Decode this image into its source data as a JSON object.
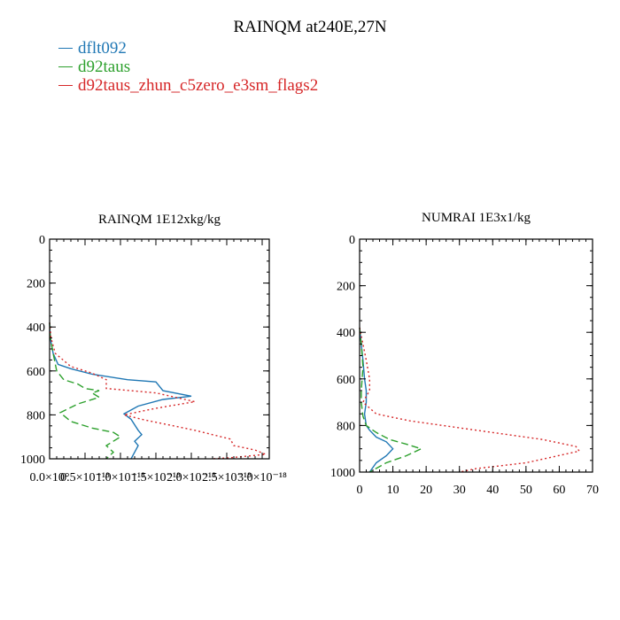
{
  "title": "RAINQM at240E,27N",
  "legend": [
    {
      "name": "dflt092",
      "color": "#1f77b4",
      "dash": "none"
    },
    {
      "name": "d92taus",
      "color": "#2ca02c",
      "dash": "8,4"
    },
    {
      "name": "d92taus_zhun_c5zero_e3sm_flags2",
      "color": "#d62728",
      "dash": "2,3"
    }
  ],
  "chart_data": [
    {
      "type": "line",
      "title": "RAINQM  1E12xkg/kg",
      "xlim": [
        0,
        3.1e-18
      ],
      "ylim": [
        1000,
        0
      ],
      "x_ticks": [
        0,
        5e-19,
        1e-18,
        1.5e-18,
        2e-18,
        2.5e-18,
        3e-18
      ],
      "x_tick_labels": [
        "0.0×10°",
        "0.5×10⁻¹⁸",
        "1.0×10⁻¹⁸",
        "1.5×10⁻¹⁸",
        "2.0×10⁻¹⁸",
        "2.5×10⁻¹⁸",
        "3.0×10⁻¹⁸"
      ],
      "y_ticks": [
        0,
        200,
        400,
        600,
        800,
        1000
      ],
      "y_tick_labels": [
        "0",
        "200",
        "400",
        "600",
        "800",
        "1000"
      ],
      "series": [
        {
          "name": "dflt092",
          "x": [
            0,
            1e-20,
            5e-20,
            1.2e-19,
            3e-19,
            6e-19,
            1.1e-18,
            1.5e-18,
            1.6e-18,
            2e-18,
            1.6e-18,
            1.25e-18,
            1.05e-18,
            1.15e-18,
            1.25e-18,
            1.3e-18,
            1.2e-18,
            1.25e-18,
            1.2e-18,
            1.15e-18
          ],
          "y": [
            380,
            450,
            520,
            570,
            590,
            615,
            640,
            650,
            690,
            715,
            730,
            760,
            795,
            820,
            870,
            890,
            920,
            940,
            970,
            1000
          ]
        },
        {
          "name": "d92taus",
          "x": [
            0,
            1e-20,
            5e-20,
            1e-19,
            2e-19,
            4e-19,
            5e-19,
            7e-19,
            6e-19,
            7e-19,
            4e-19,
            1.5e-19,
            3e-19,
            6e-19,
            9e-19,
            1e-18,
            8e-19,
            9e-19,
            8e-19
          ],
          "y": [
            380,
            450,
            520,
            600,
            640,
            660,
            680,
            690,
            700,
            720,
            750,
            790,
            830,
            860,
            880,
            900,
            940,
            970,
            1000
          ]
        },
        {
          "name": "d92taus_zhun_c5zero_e3sm_flags2",
          "x": [
            0,
            2e-20,
            8e-20,
            3e-19,
            6e-19,
            8e-19,
            8e-19,
            1.5e-18,
            2.05e-18,
            1.5e-18,
            1.05e-18,
            1.3e-18,
            2.05e-18,
            2.55e-18,
            2.6e-18,
            2.9e-18,
            3.05e-18,
            2.55e-18,
            2.3e-18
          ],
          "y": [
            380,
            450,
            520,
            580,
            610,
            640,
            680,
            700,
            740,
            770,
            800,
            820,
            870,
            910,
            940,
            960,
            980,
            995,
            1000
          ]
        }
      ]
    },
    {
      "type": "line",
      "title": "NUMRAI  1E3x1/kg",
      "xlim": [
        0,
        70
      ],
      "ylim": [
        1000,
        0
      ],
      "x_ticks": [
        0,
        10,
        20,
        30,
        40,
        50,
        60,
        70
      ],
      "x_tick_labels": [
        "0",
        "10",
        "20",
        "30",
        "40",
        "50",
        "60",
        "70"
      ],
      "y_ticks": [
        0,
        200,
        400,
        600,
        800,
        1000
      ],
      "y_tick_labels": [
        "0",
        "200",
        "400",
        "600",
        "800",
        "1000"
      ],
      "series": [
        {
          "name": "dflt092",
          "x": [
            0,
            0.5,
            1,
            1.5,
            2,
            2,
            1.5,
            2,
            3,
            5,
            8,
            10,
            8,
            5,
            3
          ],
          "y": [
            380,
            450,
            520,
            600,
            650,
            700,
            750,
            800,
            820,
            850,
            870,
            900,
            930,
            960,
            1000
          ]
        },
        {
          "name": "d92taus",
          "x": [
            0,
            0.5,
            1,
            0.5,
            0.5,
            1,
            2,
            5,
            9,
            14,
            18.5,
            14,
            8,
            3
          ],
          "y": [
            380,
            450,
            550,
            650,
            700,
            760,
            800,
            830,
            860,
            880,
            900,
            930,
            960,
            1000
          ]
        },
        {
          "name": "d92taus_zhun_c5zero_e3sm_flags2",
          "x": [
            0,
            1,
            2,
            3,
            3,
            1,
            5,
            15,
            35,
            55,
            65,
            66,
            50,
            35,
            30
          ],
          "y": [
            380,
            450,
            520,
            600,
            650,
            700,
            750,
            780,
            820,
            860,
            890,
            910,
            960,
            985,
            1000
          ]
        }
      ]
    }
  ]
}
